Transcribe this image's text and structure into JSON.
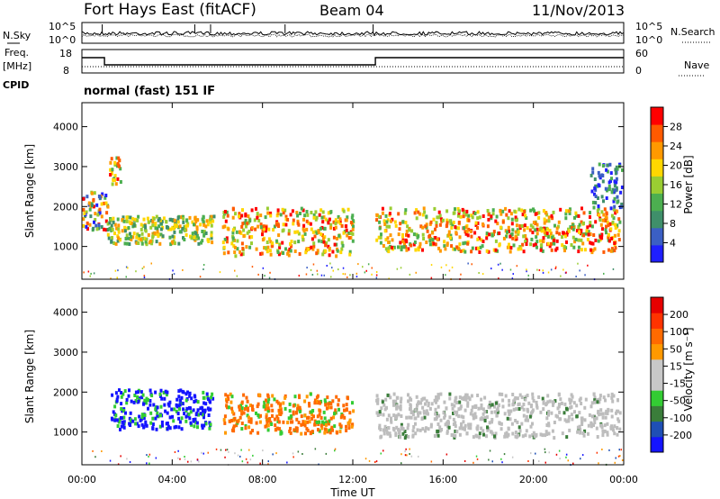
{
  "header": {
    "station": "Fort Hays East (fitACF)",
    "beam": "Beam 04",
    "date": "11/Nov/2013",
    "cpid_label": "CPID",
    "cpid_value": "normal (fast) 151 IF"
  },
  "colors": {
    "axis": "#000000",
    "ground_scatter": "#bdbdbd",
    "power_scale": [
      "#1f1fff",
      "#3b5fc4",
      "#3f8f6a",
      "#4caf50",
      "#9acd32",
      "#ffd700",
      "#ff9900",
      "#ff5a00",
      "#ff0000"
    ],
    "velocity_scale": [
      "#1414ff",
      "#1f4fb5",
      "#3a7d3a",
      "#33cc33",
      "#c8c8c8",
      "#c8c8c8",
      "#ff9900",
      "#ff6a00",
      "#ff3300",
      "#e60000"
    ]
  },
  "chart_data": [
    {
      "type": "line",
      "panel": "noise",
      "left_label": "N.Sky",
      "right_label": "N.Search",
      "left_ticks": [
        "10^5",
        "10^0"
      ],
      "right_ticks": [
        "10^5",
        "10^0"
      ]
    },
    {
      "type": "line",
      "panel": "frequency",
      "left_label": "Freq.",
      "left_unit": "[MHz]",
      "right_label": "Nave",
      "left_ticks": [
        "18",
        "8"
      ],
      "right_ticks": [
        "60",
        "0"
      ],
      "x": [
        0,
        1,
        13,
        24
      ],
      "freq_steps_mhz": [
        14.5,
        10.5,
        14.5,
        14.5
      ]
    },
    {
      "type": "heatmap",
      "panel": "power",
      "ylabel": "Slant Range [km]",
      "xlabel": "",
      "ylim": [
        180,
        4600
      ],
      "yticks": [
        "1000",
        "2000",
        "3000",
        "4000"
      ],
      "yticks_values": [
        1000,
        2000,
        3000,
        4000
      ],
      "colorbar_label": "Power [dB]",
      "colorbar_ticks": [
        "28",
        "24",
        "20",
        "16",
        "12",
        "8",
        "4"
      ],
      "regions": [
        {
          "t0": 0.0,
          "t1": 1.1,
          "r0": 1450,
          "r1": 2400,
          "level": "mixed"
        },
        {
          "t0": 1.2,
          "t1": 1.7,
          "r0": 2600,
          "r1": 3300,
          "level": "high"
        },
        {
          "t0": 1.1,
          "t1": 5.8,
          "r0": 1100,
          "r1": 1800,
          "level": "medium"
        },
        {
          "t0": 6.2,
          "t1": 12.0,
          "r0": 800,
          "r1": 2000,
          "level": "high"
        },
        {
          "t0": 13.0,
          "t1": 23.8,
          "r0": 900,
          "r1": 2000,
          "level": "high"
        },
        {
          "t0": 22.5,
          "t1": 23.9,
          "r0": 2000,
          "r1": 3100,
          "level": "low"
        }
      ]
    },
    {
      "type": "heatmap",
      "panel": "velocity",
      "ylabel": "Slant Range [km]",
      "xlabel": "Time UT",
      "ylim": [
        180,
        4600
      ],
      "yticks": [
        "1000",
        "2000",
        "3000",
        "4000"
      ],
      "yticks_values": [
        1000,
        2000,
        3000,
        4000
      ],
      "xticks": [
        "00:00",
        "04:00",
        "08:00",
        "12:00",
        "16:00",
        "20:00",
        "00:00"
      ],
      "xticks_values": [
        0,
        4,
        8,
        12,
        16,
        20,
        24
      ],
      "colorbar_label": "Velocity [m s⁻¹]",
      "colorbar_ticks": [
        "200",
        "100",
        "50",
        "15",
        "-15",
        "-50",
        "-100",
        "-200"
      ],
      "regions": [
        {
          "t0": 1.2,
          "t1": 5.8,
          "r0": 1100,
          "r1": 2100,
          "level": "toward"
        },
        {
          "t0": 6.2,
          "t1": 12.0,
          "r0": 1000,
          "r1": 2000,
          "level": "away"
        },
        {
          "t0": 13.0,
          "t1": 23.8,
          "r0": 900,
          "r1": 2000,
          "level": "ground"
        }
      ]
    }
  ]
}
